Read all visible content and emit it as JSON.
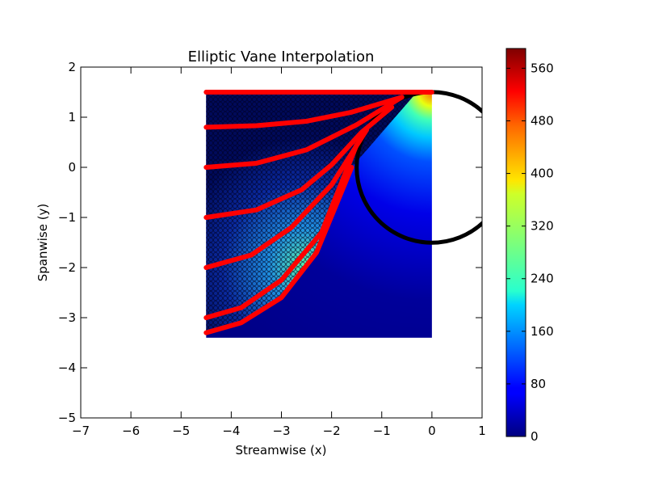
{
  "chart_data": {
    "type": "scatter",
    "title": "Elliptic Vane Interpolation",
    "xlabel": "Streamwise (x)",
    "ylabel": "Spanwise (y)",
    "xlim": [
      -7,
      1
    ],
    "ylim": [
      -5,
      2
    ],
    "xticks": [
      "−7",
      "−6",
      "−5",
      "−4",
      "−3",
      "−2",
      "−1",
      "0",
      "1"
    ],
    "yticks": [
      "−5",
      "−4",
      "−3",
      "−2",
      "−1",
      "0",
      "1",
      "2"
    ],
    "grid": false,
    "colormap": "jet",
    "colorbar": {
      "range": [
        0,
        590
      ],
      "ticks": [
        "0",
        "80",
        "160",
        "240",
        "320",
        "400",
        "480",
        "560"
      ]
    },
    "field_region": {
      "x": [
        -4.5,
        0
      ],
      "y": [
        -3.4,
        1.5
      ]
    },
    "circle": {
      "center": [
        0,
        0
      ],
      "radius": 1.5,
      "color": "#000000"
    },
    "red_curves": {
      "color": "#ff0000",
      "series": [
        {
          "x": [
            -4.5,
            -3.5,
            -2.5,
            -1.5,
            -0.6,
            0
          ],
          "y": [
            1.5,
            1.5,
            1.5,
            1.5,
            1.5,
            1.5
          ]
        },
        {
          "x": [
            -4.5,
            -3.5,
            -2.5,
            -1.6,
            -0.6
          ],
          "y": [
            0.8,
            0.83,
            0.92,
            1.1,
            1.4
          ]
        },
        {
          "x": [
            -4.5,
            -3.5,
            -2.5,
            -1.5,
            -0.6
          ],
          "y": [
            0.0,
            0.08,
            0.35,
            0.85,
            1.4
          ]
        },
        {
          "x": [
            -4.5,
            -3.5,
            -2.6,
            -2.0,
            -1.4,
            -0.8
          ],
          "y": [
            -1.0,
            -0.85,
            -0.45,
            0.05,
            0.7,
            1.2
          ]
        },
        {
          "x": [
            -4.5,
            -3.6,
            -2.8,
            -2.0,
            -1.3
          ],
          "y": [
            -2.0,
            -1.75,
            -1.2,
            -0.35,
            0.75
          ]
        },
        {
          "x": [
            -4.5,
            -3.8,
            -3.0,
            -2.2,
            -1.5
          ],
          "y": [
            -3.0,
            -2.8,
            -2.25,
            -1.3,
            0.45
          ]
        },
        {
          "x": [
            -4.5,
            -3.8,
            -3.0,
            -2.3,
            -1.6
          ],
          "y": [
            -3.3,
            -3.1,
            -2.6,
            -1.7,
            0.0
          ]
        }
      ]
    }
  }
}
